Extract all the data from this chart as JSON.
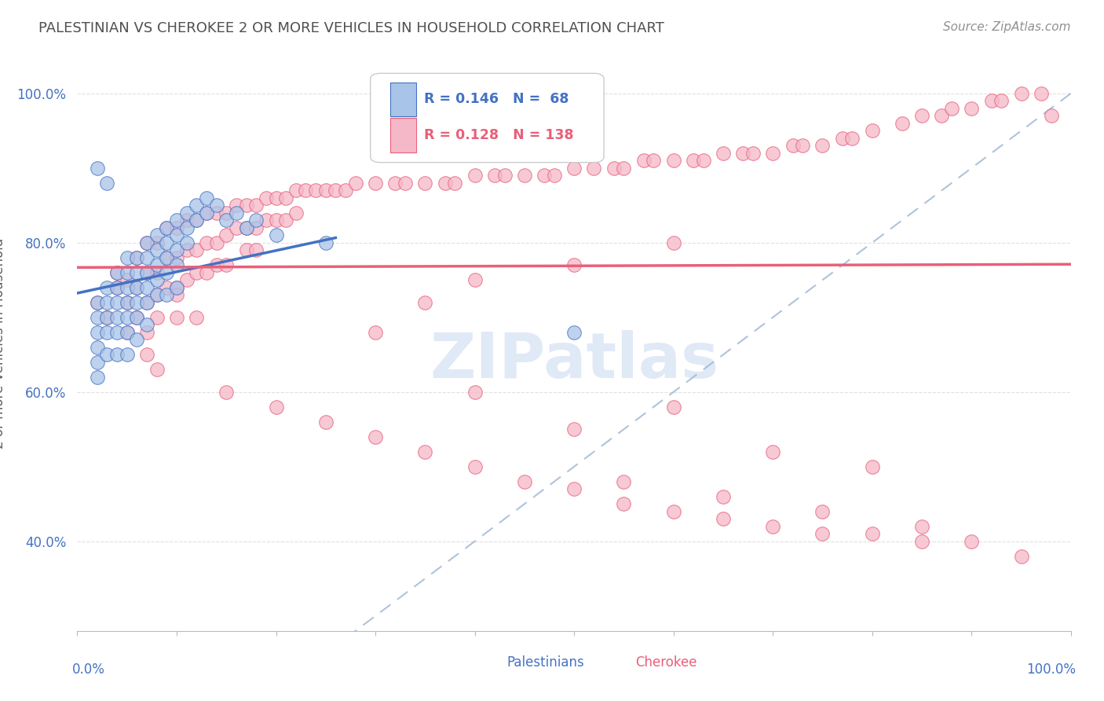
{
  "title": "PALESTINIAN VS CHEROKEE 2 OR MORE VEHICLES IN HOUSEHOLD CORRELATION CHART",
  "source": "Source: ZipAtlas.com",
  "ylabel": "2 or more Vehicles in Household",
  "blue_color": "#a8c4e8",
  "pink_color": "#f5b8c8",
  "blue_line_color": "#4472c4",
  "pink_line_color": "#e8607a",
  "watermark_color": "#c8d8f0",
  "palestinians_x": [
    0.02,
    0.02,
    0.02,
    0.02,
    0.02,
    0.02,
    0.03,
    0.03,
    0.03,
    0.03,
    0.03,
    0.04,
    0.04,
    0.04,
    0.04,
    0.04,
    0.04,
    0.05,
    0.05,
    0.05,
    0.05,
    0.05,
    0.05,
    0.05,
    0.06,
    0.06,
    0.06,
    0.06,
    0.06,
    0.06,
    0.07,
    0.07,
    0.07,
    0.07,
    0.07,
    0.07,
    0.08,
    0.08,
    0.08,
    0.08,
    0.08,
    0.09,
    0.09,
    0.09,
    0.09,
    0.09,
    0.1,
    0.1,
    0.1,
    0.1,
    0.1,
    0.11,
    0.11,
    0.11,
    0.12,
    0.12,
    0.13,
    0.13,
    0.14,
    0.15,
    0.16,
    0.17,
    0.18,
    0.2,
    0.25,
    0.5,
    0.02,
    0.03
  ],
  "palestinians_y": [
    0.72,
    0.7,
    0.68,
    0.66,
    0.64,
    0.62,
    0.74,
    0.72,
    0.7,
    0.68,
    0.65,
    0.76,
    0.74,
    0.72,
    0.7,
    0.68,
    0.65,
    0.78,
    0.76,
    0.74,
    0.72,
    0.7,
    0.68,
    0.65,
    0.78,
    0.76,
    0.74,
    0.72,
    0.7,
    0.67,
    0.8,
    0.78,
    0.76,
    0.74,
    0.72,
    0.69,
    0.81,
    0.79,
    0.77,
    0.75,
    0.73,
    0.82,
    0.8,
    0.78,
    0.76,
    0.73,
    0.83,
    0.81,
    0.79,
    0.77,
    0.74,
    0.84,
    0.82,
    0.8,
    0.85,
    0.83,
    0.86,
    0.84,
    0.85,
    0.83,
    0.84,
    0.82,
    0.83,
    0.81,
    0.8,
    0.68,
    0.9,
    0.88
  ],
  "cherokee_x": [
    0.02,
    0.03,
    0.04,
    0.04,
    0.05,
    0.05,
    0.05,
    0.06,
    0.06,
    0.06,
    0.07,
    0.07,
    0.07,
    0.07,
    0.08,
    0.08,
    0.08,
    0.08,
    0.09,
    0.09,
    0.09,
    0.1,
    0.1,
    0.1,
    0.1,
    0.11,
    0.11,
    0.11,
    0.12,
    0.12,
    0.12,
    0.13,
    0.13,
    0.13,
    0.14,
    0.14,
    0.14,
    0.15,
    0.15,
    0.15,
    0.16,
    0.16,
    0.17,
    0.17,
    0.17,
    0.18,
    0.18,
    0.18,
    0.19,
    0.19,
    0.2,
    0.2,
    0.21,
    0.21,
    0.22,
    0.22,
    0.23,
    0.24,
    0.25,
    0.26,
    0.27,
    0.28,
    0.3,
    0.3,
    0.32,
    0.33,
    0.35,
    0.35,
    0.37,
    0.38,
    0.4,
    0.4,
    0.42,
    0.43,
    0.45,
    0.47,
    0.48,
    0.5,
    0.5,
    0.52,
    0.54,
    0.55,
    0.57,
    0.58,
    0.6,
    0.6,
    0.62,
    0.63,
    0.65,
    0.67,
    0.68,
    0.7,
    0.72,
    0.73,
    0.75,
    0.77,
    0.78,
    0.8,
    0.83,
    0.85,
    0.87,
    0.88,
    0.9,
    0.92,
    0.93,
    0.95,
    0.97,
    0.98,
    0.1,
    0.12,
    0.07,
    0.08,
    0.15,
    0.2,
    0.25,
    0.3,
    0.35,
    0.4,
    0.45,
    0.5,
    0.55,
    0.6,
    0.65,
    0.7,
    0.75,
    0.8,
    0.85,
    0.9,
    0.95,
    0.4,
    0.6,
    0.5,
    0.7,
    0.8,
    0.55,
    0.65,
    0.75,
    0.85
  ],
  "cherokee_y": [
    0.72,
    0.7,
    0.74,
    0.76,
    0.72,
    0.68,
    0.75,
    0.78,
    0.74,
    0.7,
    0.8,
    0.76,
    0.72,
    0.68,
    0.8,
    0.76,
    0.73,
    0.7,
    0.82,
    0.78,
    0.74,
    0.82,
    0.78,
    0.74,
    0.7,
    0.83,
    0.79,
    0.75,
    0.83,
    0.79,
    0.76,
    0.84,
    0.8,
    0.76,
    0.84,
    0.8,
    0.77,
    0.84,
    0.81,
    0.77,
    0.85,
    0.82,
    0.85,
    0.82,
    0.79,
    0.85,
    0.82,
    0.79,
    0.86,
    0.83,
    0.86,
    0.83,
    0.86,
    0.83,
    0.87,
    0.84,
    0.87,
    0.87,
    0.87,
    0.87,
    0.87,
    0.88,
    0.88,
    0.68,
    0.88,
    0.88,
    0.88,
    0.72,
    0.88,
    0.88,
    0.89,
    0.75,
    0.89,
    0.89,
    0.89,
    0.89,
    0.89,
    0.9,
    0.77,
    0.9,
    0.9,
    0.9,
    0.91,
    0.91,
    0.91,
    0.8,
    0.91,
    0.91,
    0.92,
    0.92,
    0.92,
    0.92,
    0.93,
    0.93,
    0.93,
    0.94,
    0.94,
    0.95,
    0.96,
    0.97,
    0.97,
    0.98,
    0.98,
    0.99,
    0.99,
    1.0,
    1.0,
    0.97,
    0.73,
    0.7,
    0.65,
    0.63,
    0.6,
    0.58,
    0.56,
    0.54,
    0.52,
    0.5,
    0.48,
    0.47,
    0.45,
    0.44,
    0.43,
    0.42,
    0.41,
    0.41,
    0.4,
    0.4,
    0.38,
    0.6,
    0.58,
    0.55,
    0.52,
    0.5,
    0.48,
    0.46,
    0.44,
    0.42
  ],
  "xlim": [
    0.0,
    1.0
  ],
  "ylim": [
    0.28,
    1.05
  ],
  "yticks": [
    0.4,
    0.6,
    0.8,
    1.0
  ],
  "ytick_labels": [
    "40.0%",
    "60.0%",
    "80.0%",
    "100.0%"
  ]
}
